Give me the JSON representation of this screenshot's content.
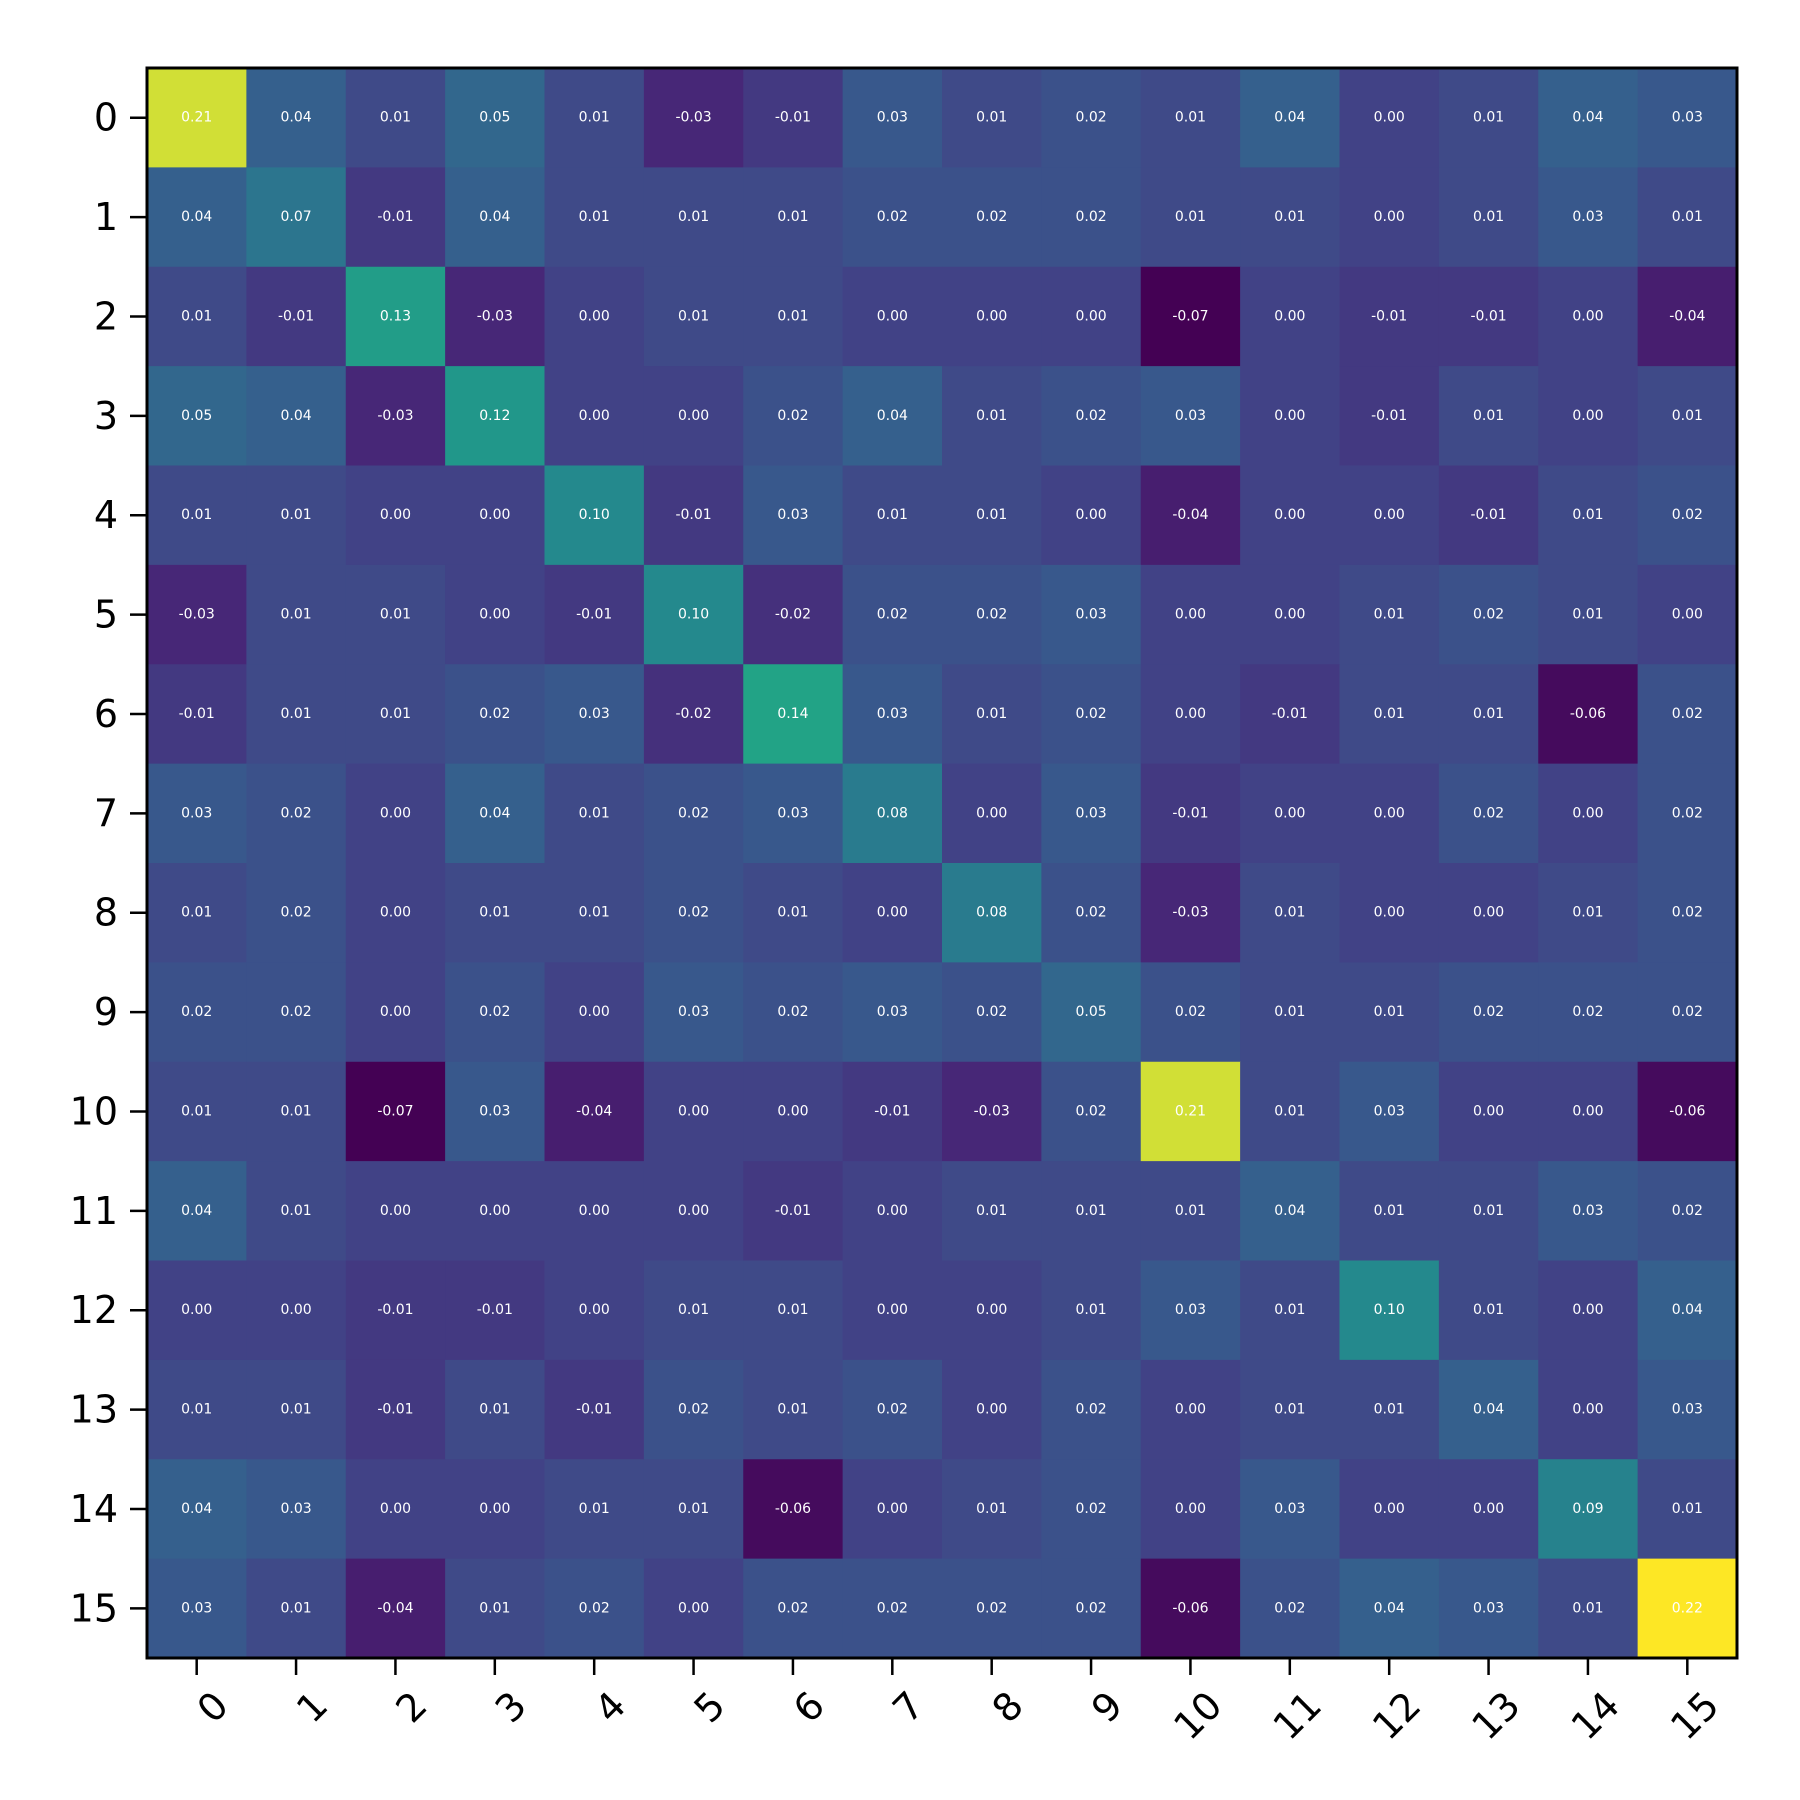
{
  "chart_data": {
    "type": "heatmap",
    "title": "",
    "xlabel": "",
    "ylabel": "",
    "colormap": "viridis",
    "value_range": [
      -0.07,
      0.22
    ],
    "grid": false,
    "x_tick_labels": [
      "0",
      "1",
      "2",
      "3",
      "4",
      "5",
      "6",
      "7",
      "8",
      "9",
      "10",
      "11",
      "12",
      "13",
      "14",
      "15"
    ],
    "y_tick_labels": [
      "0",
      "1",
      "2",
      "3",
      "4",
      "5",
      "6",
      "7",
      "8",
      "9",
      "10",
      "11",
      "12",
      "13",
      "14",
      "15"
    ],
    "values": [
      [
        0.21,
        0.04,
        0.01,
        0.05,
        0.01,
        -0.03,
        -0.01,
        0.03,
        0.01,
        0.02,
        0.01,
        0.04,
        0.0,
        0.01,
        0.04,
        0.03
      ],
      [
        0.04,
        0.07,
        -0.01,
        0.04,
        0.01,
        0.01,
        0.01,
        0.02,
        0.02,
        0.02,
        0.01,
        0.01,
        -0.0,
        0.01,
        0.03,
        0.01
      ],
      [
        0.01,
        -0.01,
        0.13,
        -0.03,
        -0.0,
        0.01,
        0.01,
        0.0,
        0.0,
        -0.0,
        -0.07,
        -0.0,
        -0.01,
        -0.01,
        0.0,
        -0.04
      ],
      [
        0.05,
        0.04,
        -0.03,
        0.12,
        -0.0,
        -0.0,
        0.02,
        0.04,
        0.01,
        0.02,
        0.03,
        0.0,
        -0.01,
        0.01,
        -0.0,
        0.01
      ],
      [
        0.01,
        0.01,
        -0.0,
        -0.0,
        0.1,
        -0.01,
        0.03,
        0.01,
        0.01,
        -0.0,
        -0.04,
        0.0,
        -0.0,
        -0.01,
        0.01,
        0.02
      ],
      [
        -0.03,
        0.01,
        0.01,
        -0.0,
        -0.01,
        0.1,
        -0.02,
        0.02,
        0.02,
        0.03,
        -0.0,
        -0.0,
        0.01,
        0.02,
        0.01,
        0.0
      ],
      [
        -0.01,
        0.01,
        0.01,
        0.02,
        0.03,
        -0.02,
        0.14,
        0.03,
        0.01,
        0.02,
        -0.0,
        -0.01,
        0.01,
        0.01,
        -0.06,
        0.02
      ],
      [
        0.03,
        0.02,
        0.0,
        0.04,
        0.01,
        0.02,
        0.03,
        0.08,
        0.0,
        0.03,
        -0.01,
        0.0,
        0.0,
        0.02,
        0.0,
        0.02
      ],
      [
        0.01,
        0.02,
        0.0,
        0.01,
        0.01,
        0.02,
        0.01,
        0.0,
        0.08,
        0.02,
        -0.03,
        0.01,
        -0.0,
        0.0,
        0.01,
        0.02
      ],
      [
        0.02,
        0.02,
        -0.0,
        0.02,
        -0.0,
        0.03,
        0.02,
        0.03,
        0.02,
        0.05,
        0.02,
        0.01,
        0.01,
        0.02,
        0.02,
        0.02
      ],
      [
        0.01,
        0.01,
        -0.07,
        0.03,
        -0.04,
        -0.0,
        -0.0,
        -0.01,
        -0.03,
        0.02,
        0.21,
        0.01,
        0.03,
        0.0,
        -0.0,
        -0.06
      ],
      [
        0.04,
        0.01,
        -0.0,
        0.0,
        0.0,
        -0.0,
        -0.01,
        0.0,
        0.01,
        0.01,
        0.01,
        0.04,
        0.01,
        0.01,
        0.03,
        0.02
      ],
      [
        0.0,
        -0.0,
        -0.01,
        -0.01,
        -0.0,
        0.01,
        0.01,
        0.0,
        -0.0,
        0.01,
        0.03,
        0.01,
        0.1,
        0.01,
        0.0,
        0.04
      ],
      [
        0.01,
        0.01,
        -0.01,
        0.01,
        -0.01,
        0.02,
        0.01,
        0.02,
        0.0,
        0.02,
        0.0,
        0.01,
        0.01,
        0.04,
        0.0,
        0.03
      ],
      [
        0.04,
        0.03,
        0.0,
        -0.0,
        0.01,
        0.01,
        -0.06,
        0.0,
        0.01,
        0.02,
        -0.0,
        0.03,
        0.0,
        0.0,
        0.09,
        0.01
      ],
      [
        0.03,
        0.01,
        -0.04,
        0.01,
        0.02,
        0.0,
        0.02,
        0.02,
        0.02,
        0.02,
        -0.06,
        0.02,
        0.04,
        0.03,
        0.01,
        0.22
      ]
    ]
  }
}
